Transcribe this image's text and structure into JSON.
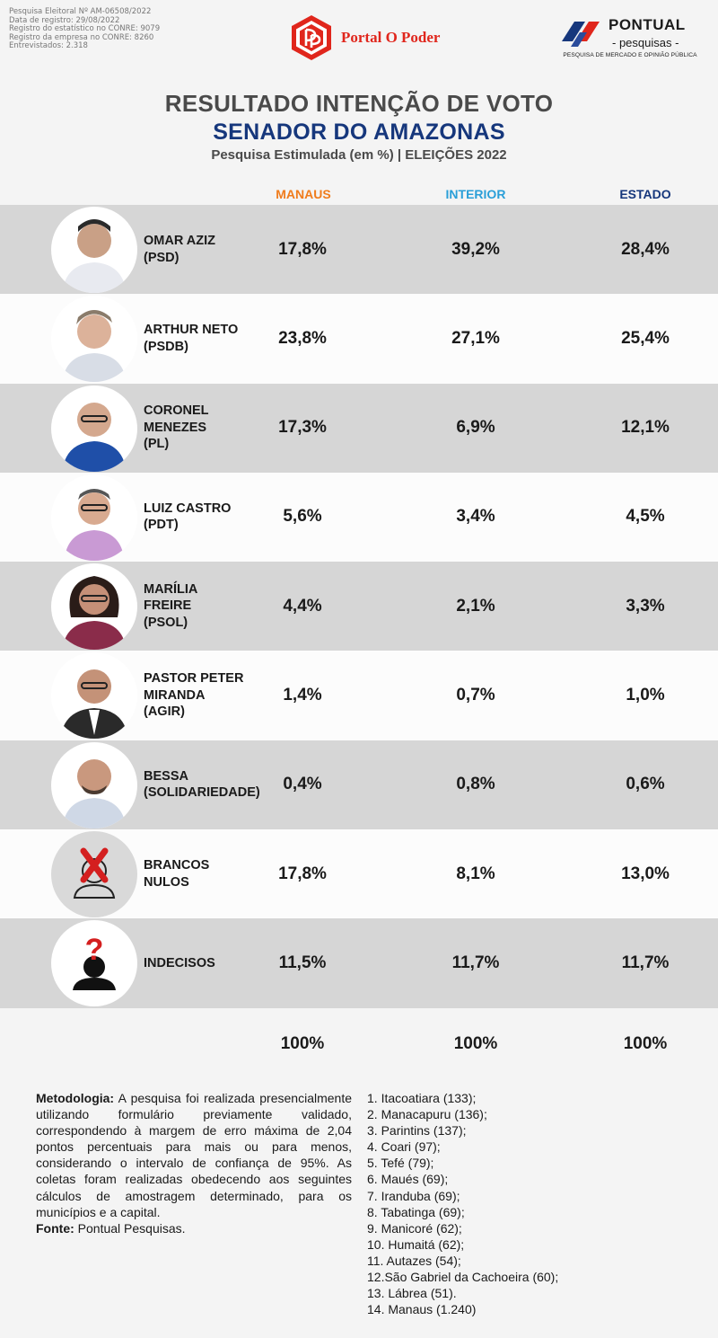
{
  "registration": [
    "Pesquisa Eleitoral Nº AM-06508/2022",
    "Data de registro: 29/08/2022",
    "Registro do estatístico no CONRE: 9079",
    "Registro da empresa no CONRE: 8260",
    "Entrevistados: 2.318"
  ],
  "logos": {
    "left_name": "Portal O Poder",
    "right_brand": "PONTUAL",
    "right_sub": "- pesquisas -",
    "right_tagline": "PESQUISA DE MERCADO E OPINIÃO PÚBLICA"
  },
  "header": {
    "title": "RESULTADO INTENÇÃO DE VOTO",
    "subtitle": "SENADOR DO AMAZONAS",
    "caption": "Pesquisa Estimulada (em %) | ELEIÇÕES 2022"
  },
  "columns": [
    "MANAUS",
    "INTERIOR",
    "ESTADO"
  ],
  "colors": {
    "manaus": "#f07c1c",
    "interior": "#2a9fd8",
    "estado": "#16377c",
    "title": "#4a4a4a",
    "accent_red": "#e0261c"
  },
  "candidates": [
    {
      "name": "OMAR AZIZ\n(PSD)",
      "manaus": "17,8%",
      "interior": "39,2%",
      "estado": "28,4%",
      "avatar": "person-photo",
      "icon": "candidate-photo-icon"
    },
    {
      "name": "ARTHUR NETO\n(PSDB)",
      "manaus": "23,8%",
      "interior": "27,1%",
      "estado": "25,4%",
      "avatar": "person-photo",
      "icon": "candidate-photo-icon"
    },
    {
      "name": "CORONEL\nMENEZES\n(PL)",
      "manaus": "17,3%",
      "interior": "6,9%",
      "estado": "12,1%",
      "avatar": "person-photo",
      "icon": "candidate-photo-icon"
    },
    {
      "name": "LUIZ CASTRO\n(PDT)",
      "manaus": "5,6%",
      "interior": "3,4%",
      "estado": "4,5%",
      "avatar": "person-photo",
      "icon": "candidate-photo-icon"
    },
    {
      "name": "MARÍLIA\nFREIRE\n(PSOL)",
      "manaus": "4,4%",
      "interior": "2,1%",
      "estado": "3,3%",
      "avatar": "person-photo",
      "icon": "candidate-photo-icon"
    },
    {
      "name": "PASTOR PETER\nMIRANDA\n(AGIR)",
      "manaus": "1,4%",
      "interior": "0,7%",
      "estado": "1,0%",
      "avatar": "person-photo",
      "icon": "candidate-photo-icon"
    },
    {
      "name": "BESSA\n(SOLIDARIEDADE)",
      "manaus": "0,4%",
      "interior": "0,8%",
      "estado": "0,6%",
      "avatar": "person-photo",
      "icon": "candidate-photo-icon"
    },
    {
      "name": "BRANCOS\nNULOS",
      "manaus": "17,8%",
      "interior": "8,1%",
      "estado": "13,0%",
      "avatar": "null-vote",
      "icon": "red-x-person-icon"
    },
    {
      "name": "INDECISOS",
      "manaus": "11,5%",
      "interior": "11,7%",
      "estado": "11,7%",
      "avatar": "undecided",
      "icon": "question-mark-person-icon"
    }
  ],
  "totals": {
    "manaus": "100%",
    "interior": "100%",
    "estado": "100%"
  },
  "methodology": {
    "label": "Metodologia:",
    "text": " A pesquisa foi realizada presencialmente utilizando formulário previamente validado, correspondendo à margem de erro máxima de 2,04 pontos percentuais para mais ou para menos, considerando o intervalo de confiança de 95%. As coletas foram realizadas obedecendo aos seguintes cálculos de amostragem determinado, para os municípios e a capital.",
    "source_label": "Fonte:",
    "source": " Pontual Pesquisas."
  },
  "cities": [
    "1. Itacoatiara (133);",
    "2. Manacapuru (136);",
    "3. Parintins (137);",
    "4. Coari (97);",
    "5. Tefé (79);",
    "6. Maués (69);",
    "7. Iranduba (69);",
    "8. Tabatinga (69);",
    "9. Manicoré (62);",
    "10. Humaitá (62);",
    "11. Autazes (54);",
    "12.São Gabriel da Cachoeira (60);",
    "13. Lábrea (51).",
    "14. Manaus (1.240)"
  ]
}
